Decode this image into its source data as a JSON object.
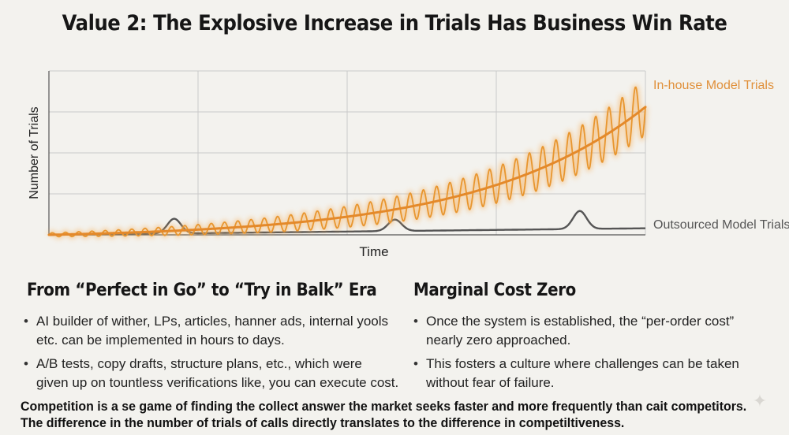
{
  "header": {
    "title": "Value 2: The Explosive Increase in Trials Has Business Win Rate"
  },
  "chart_data": {
    "type": "line",
    "xlabel": "Time",
    "ylabel": "Number of Trials",
    "xlim": [
      0,
      100
    ],
    "ylim": [
      0,
      100
    ],
    "grid": true,
    "x_ticks": 4,
    "y_ticks": 4,
    "series": [
      {
        "name": "In-house Model Trials",
        "color": "#e8962f",
        "trend": "exponential",
        "start": 0,
        "end": 78,
        "oscillation_count": 45
      },
      {
        "name": "Outsourced Model Trials",
        "color": "#555555",
        "trend": "flat",
        "baseline": 0,
        "end": 4,
        "spikes": [
          {
            "x": 21,
            "height": 9
          },
          {
            "x": 58,
            "height": 7
          },
          {
            "x": 89,
            "height": 11
          }
        ]
      }
    ]
  },
  "left_section": {
    "title": "From “Perfect in Go” to “Try in Balk” Era",
    "bullets": [
      {
        "line1": "AI builder of wither, LPs, articles, hanner ads, internal yools",
        "line2": "etc. can be implemented in hours to days."
      },
      {
        "line1": "A/B tests, copy drafts, structure plans, etc., which were",
        "line2": "given up on tountless verifications like, you can execute cost."
      }
    ]
  },
  "right_section": {
    "title": "Marginal Cost Zero",
    "bullets": [
      {
        "line1": "Once the system is established, the “per-order cost”",
        "line2": "nearly zero approached."
      },
      {
        "line1": "This fosters a culture where challenges can be taken",
        "line2": "without fear of failure."
      }
    ]
  },
  "footer": {
    "line1": "Competition is a se game of finding the collect answer the market seeks faster and more frequently than cait competitors.",
    "line2": "The difference in the number of trials of calls directly translates to the difference in competiltiveness."
  },
  "colors": {
    "accent": "#e8962f",
    "secondary": "#555555",
    "background": "#f3f2ee",
    "grid": "#c9c9c9"
  }
}
